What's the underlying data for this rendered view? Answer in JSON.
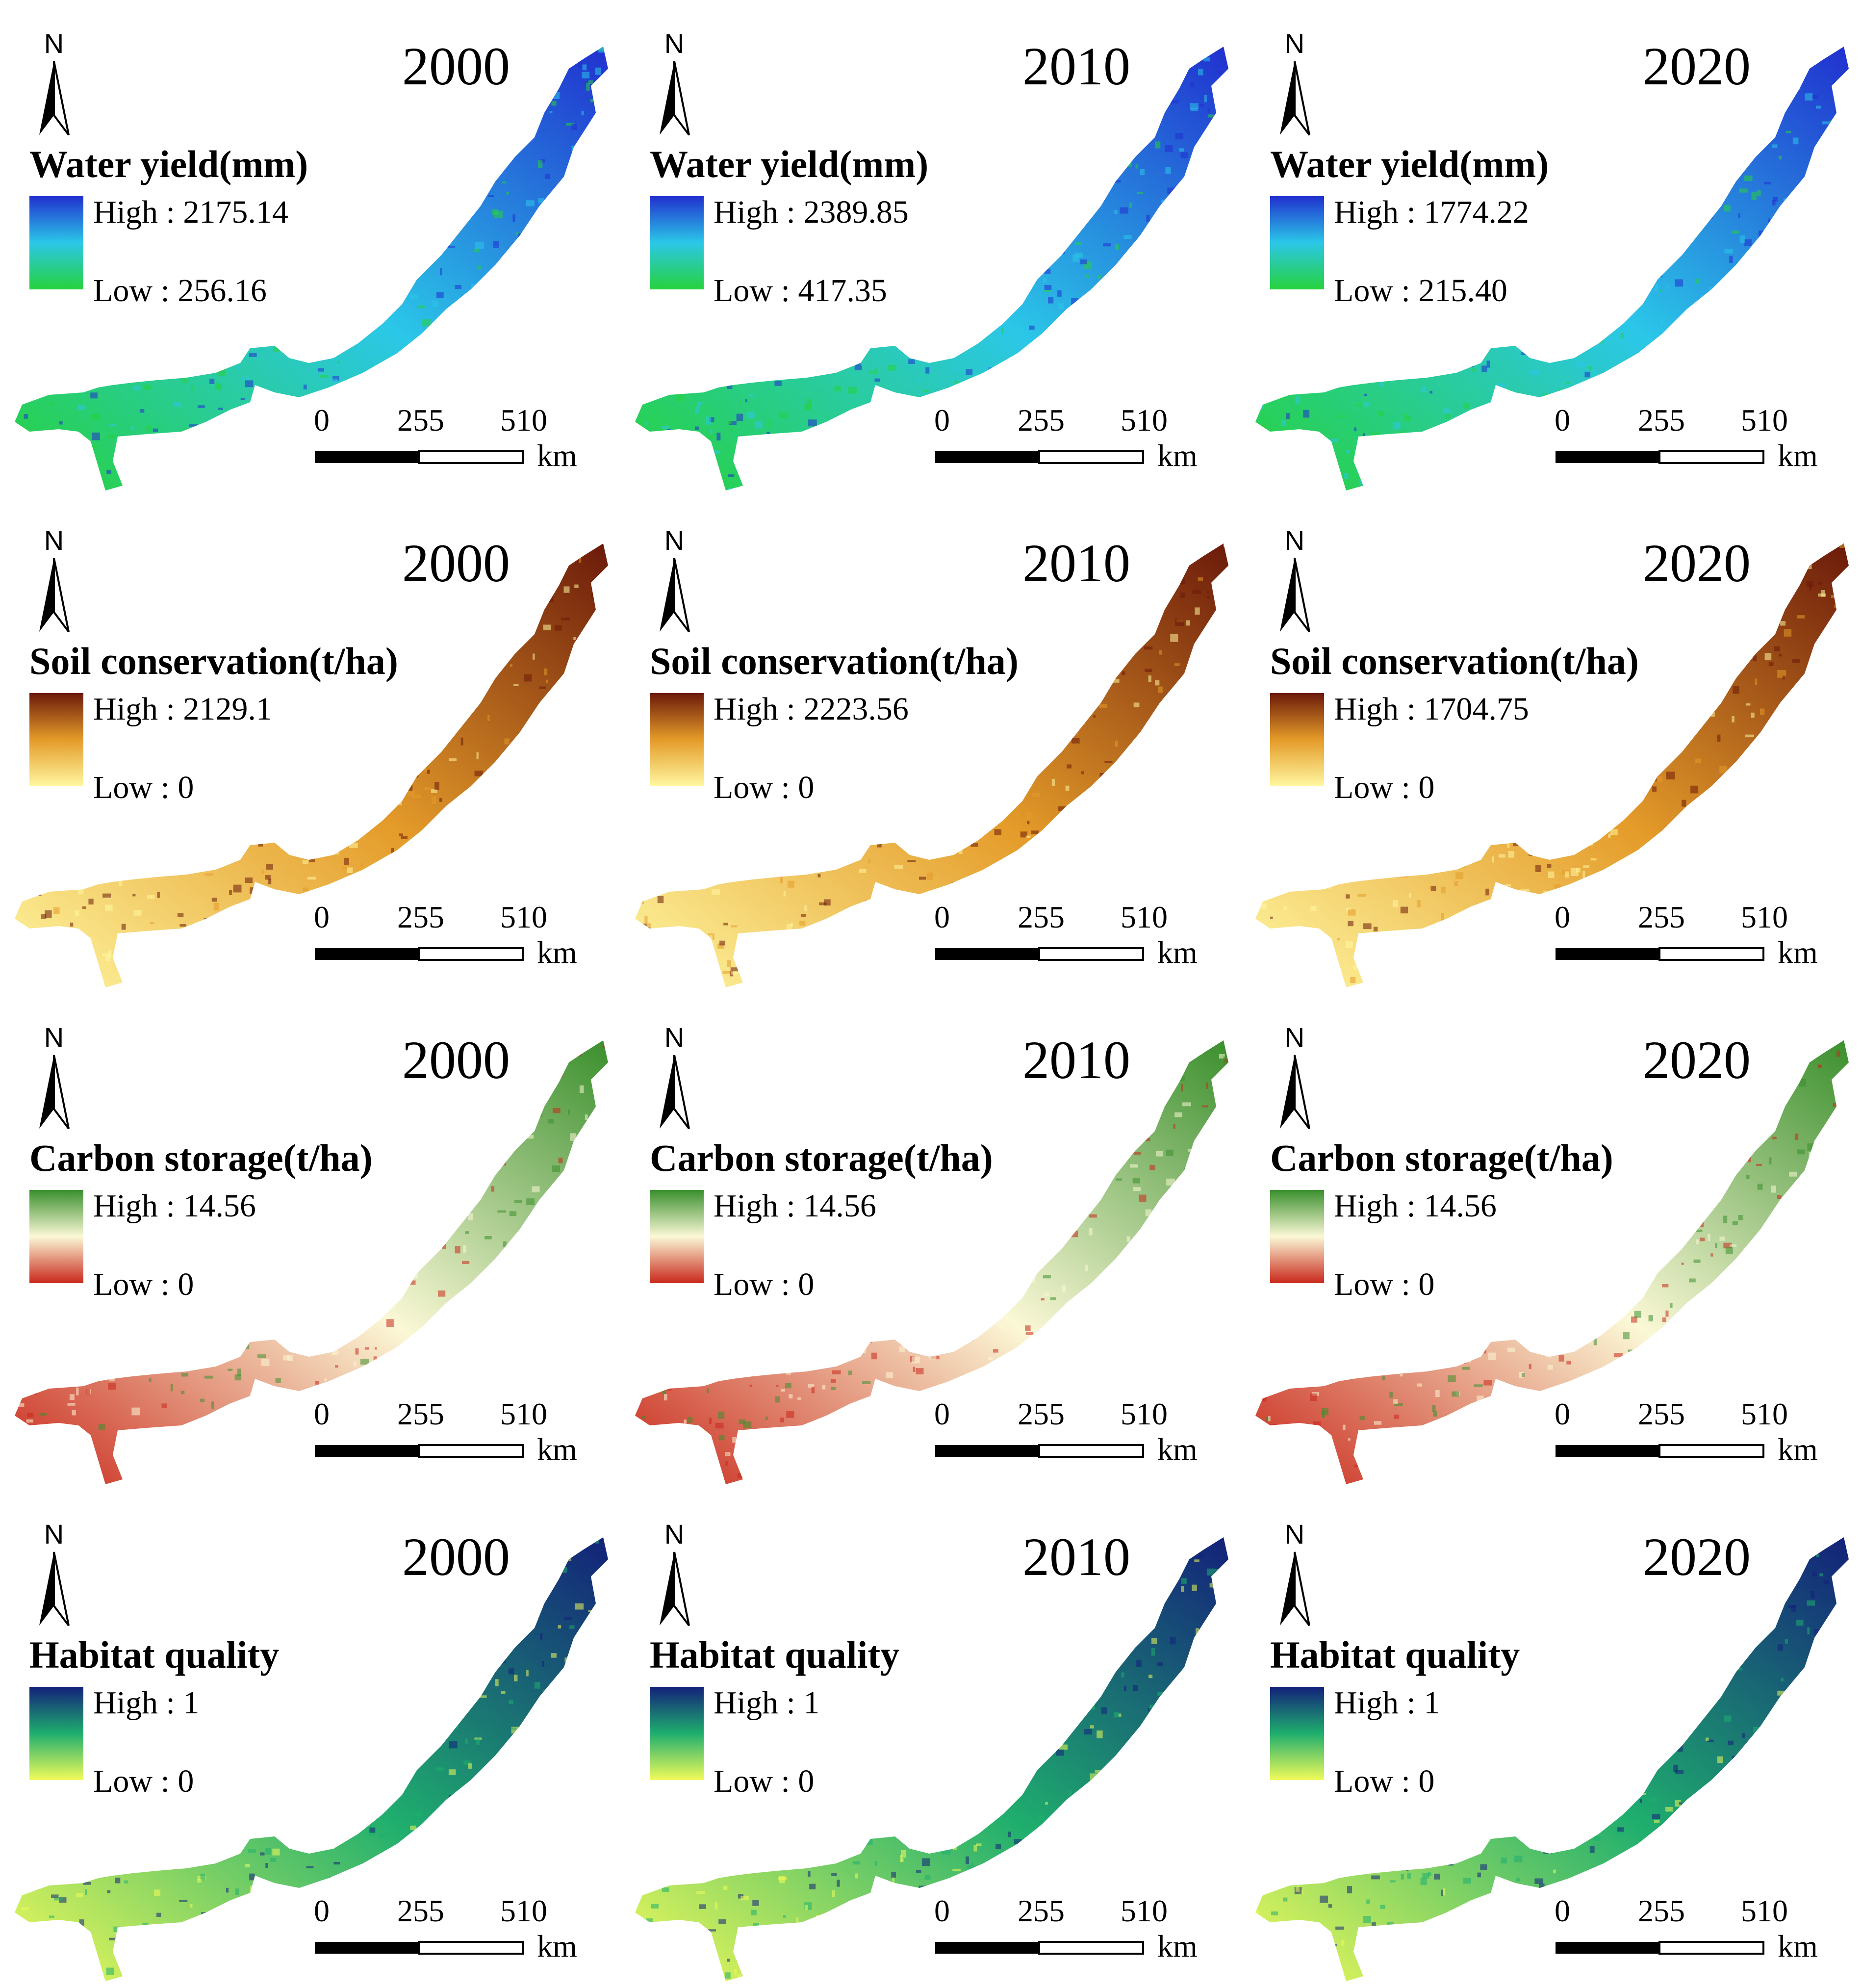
{
  "years": [
    "2000",
    "2010",
    "2020"
  ],
  "north_label": "N",
  "scale": {
    "ticks": [
      "0",
      "255",
      "510"
    ],
    "unit": "km"
  },
  "rows": [
    {
      "key": "water",
      "title": "Water yield(mm)",
      "colors": [
        "#2130cf",
        "#2bc7e8",
        "#27d23c"
      ],
      "color_scale": "blue-cyan-green",
      "legend": [
        {
          "high": "High : 2175.14",
          "low": "Low : 256.16"
        },
        {
          "high": "High : 2389.85",
          "low": "Low : 417.35"
        },
        {
          "high": "High : 1774.22",
          "low": "Low : 215.40"
        }
      ]
    },
    {
      "key": "soil",
      "title": "Soil conservation(t/ha)",
      "colors": [
        "#6b1a0a",
        "#e49b29",
        "#fff7a0"
      ],
      "color_scale": "brown-orange-yellow",
      "legend": [
        {
          "high": "High : 2129.1",
          "low": "Low : 0"
        },
        {
          "high": "High : 2223.56",
          "low": "Low : 0"
        },
        {
          "high": "High : 1704.75",
          "low": "Low : 0"
        }
      ]
    },
    {
      "key": "carbon",
      "title": "Carbon storage(t/ha)",
      "colors": [
        "#3a8f2d",
        "#fbf8d6",
        "#c9281b"
      ],
      "color_scale": "green-cream-red",
      "legend": [
        {
          "high": "High : 14.56",
          "low": "Low : 0"
        },
        {
          "high": "High : 14.56",
          "low": "Low : 0"
        },
        {
          "high": "High : 14.56",
          "low": "Low : 0"
        }
      ]
    },
    {
      "key": "habitat",
      "title": "Habitat quality",
      "colors": [
        "#13217a",
        "#1fae6e",
        "#f1fb5a"
      ],
      "color_scale": "navy-green-yellow",
      "legend": [
        {
          "high": "High : 1",
          "low": "Low : 0"
        },
        {
          "high": "High : 1",
          "low": "Low : 0"
        },
        {
          "high": "High : 1",
          "low": "Low : 0"
        }
      ]
    }
  ]
}
